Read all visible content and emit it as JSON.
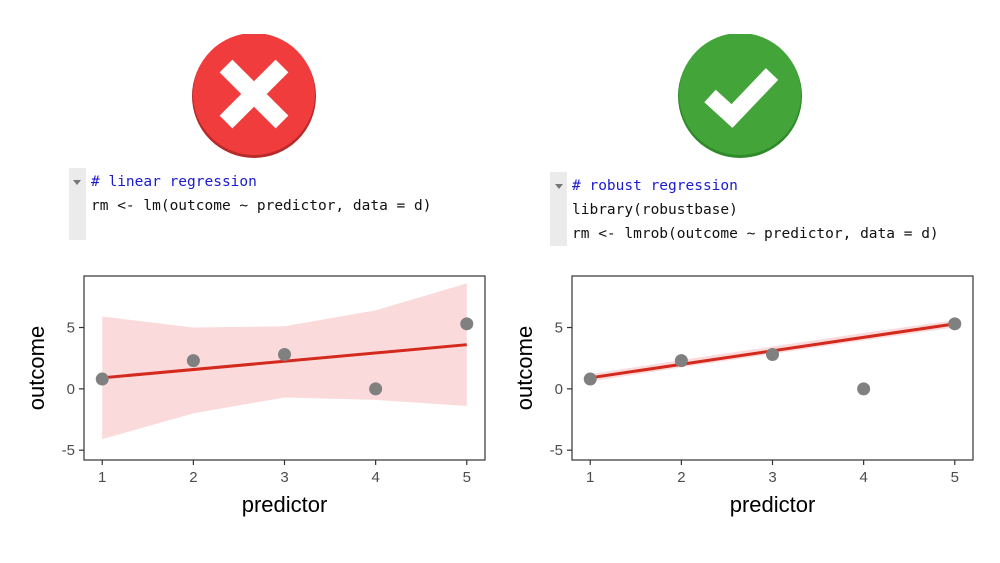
{
  "panels": [
    {
      "id": "left",
      "badge": {
        "icon": "cross-icon",
        "color": "#f03c3c",
        "meaning": "incorrect"
      },
      "code": [
        {
          "text": "# linear regression",
          "kind": "comment"
        },
        {
          "text": "rm <- lm(outcome ~ predictor, data = d)",
          "kind": "code"
        }
      ]
    },
    {
      "id": "right",
      "badge": {
        "icon": "check-icon",
        "color": "#43a43a",
        "meaning": "correct"
      },
      "code": [
        {
          "text": "# robust regression",
          "kind": "comment"
        },
        {
          "text": "library(robustbase)",
          "kind": "code"
        },
        {
          "text": "rm <- lmrob(outcome ~ predictor, data = d)",
          "kind": "code"
        }
      ]
    }
  ],
  "chart_data": [
    {
      "type": "scatter",
      "method": "lm",
      "xlabel": "predictor",
      "ylabel": "outcome",
      "xlim": [
        0.8,
        5.2
      ],
      "ylim": [
        -5.8,
        9.2
      ],
      "xticks": [
        1,
        2,
        3,
        4,
        5
      ],
      "yticks": [
        -5,
        0,
        5
      ],
      "points": [
        {
          "x": 1,
          "y": 0.8
        },
        {
          "x": 2,
          "y": 2.3
        },
        {
          "x": 3,
          "y": 2.8
        },
        {
          "x": 4,
          "y": 0.0
        },
        {
          "x": 5,
          "y": 5.3
        }
      ],
      "fit_line": [
        {
          "x": 1,
          "y": 0.9
        },
        {
          "x": 5,
          "y": 3.6
        }
      ],
      "confidence_band": {
        "x": [
          1,
          2,
          3,
          4,
          5
        ],
        "lower": [
          -4.1,
          -2.0,
          -0.7,
          -0.9,
          -1.4
        ],
        "upper": [
          5.9,
          5.0,
          5.1,
          6.4,
          8.6
        ]
      },
      "colors": {
        "points": "#808080",
        "line": "#d42a1e",
        "band": "#fadadb",
        "axis": "#333333"
      },
      "grid": false
    },
    {
      "type": "scatter",
      "method": "lmrob",
      "xlabel": "predictor",
      "ylabel": "outcome",
      "xlim": [
        0.8,
        5.2
      ],
      "ylim": [
        -5.8,
        9.2
      ],
      "xticks": [
        1,
        2,
        3,
        4,
        5
      ],
      "yticks": [
        -5,
        0,
        5
      ],
      "points": [
        {
          "x": 1,
          "y": 0.8
        },
        {
          "x": 2,
          "y": 2.3
        },
        {
          "x": 3,
          "y": 2.8
        },
        {
          "x": 4,
          "y": 0.0
        },
        {
          "x": 5,
          "y": 5.3
        }
      ],
      "fit_line": [
        {
          "x": 1,
          "y": 0.9
        },
        {
          "x": 5,
          "y": 5.3
        }
      ],
      "confidence_band": {
        "x": [
          1,
          2,
          3,
          4,
          5
        ],
        "lower": [
          0.6,
          1.75,
          2.85,
          3.95,
          5.0
        ],
        "upper": [
          1.2,
          2.35,
          3.45,
          4.55,
          5.6
        ]
      },
      "colors": {
        "points": "#808080",
        "line": "#d42a1e",
        "band": "#fadadb",
        "axis": "#333333"
      },
      "grid": false
    }
  ]
}
